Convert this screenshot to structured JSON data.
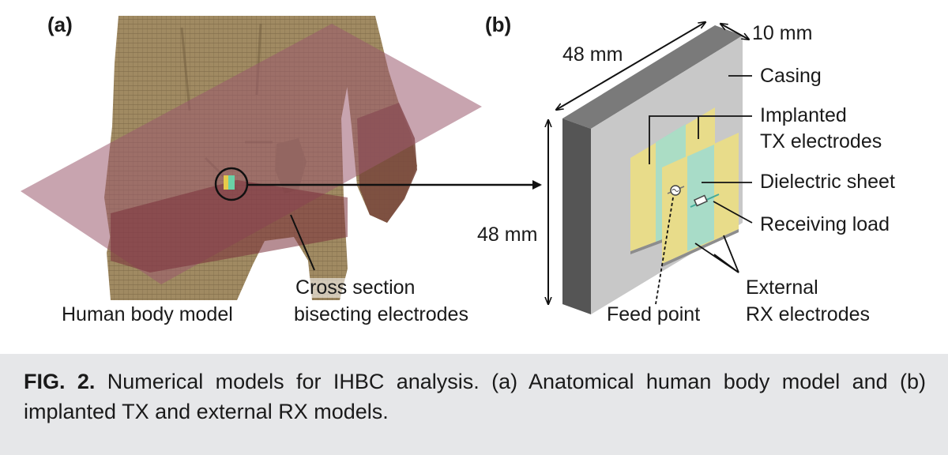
{
  "panel_a": {
    "tag": "(a)",
    "body_label": "Human body model",
    "section_label_1": "Cross section",
    "section_label_2": "bisecting electrodes"
  },
  "panel_b": {
    "tag": "(b)",
    "dim_width": "48 mm",
    "dim_height": "48 mm",
    "dim_depth": "10 mm",
    "casing": "Casing",
    "tx_1": "Implanted",
    "tx_2": "TX electrodes",
    "dielectric": "Dielectric sheet",
    "load": "Receiving load",
    "feed": "Feed point",
    "rx_1": "External",
    "rx_2": "RX electrodes"
  },
  "caption": {
    "label": "FIG. 2.",
    "text": " Numerical models for IHBC analysis. (a) Anatomical human body model and (b) implanted TX and external RX models."
  },
  "colors": {
    "skin": "#a08a62",
    "plane": "#9a5a6e",
    "casing_face": "#c8c8c8",
    "casing_side": "#5a5a5a",
    "electrode": "#e8dc8a",
    "dielectric": "#a8dcc8",
    "caption_bg": "#e6e7e9"
  }
}
